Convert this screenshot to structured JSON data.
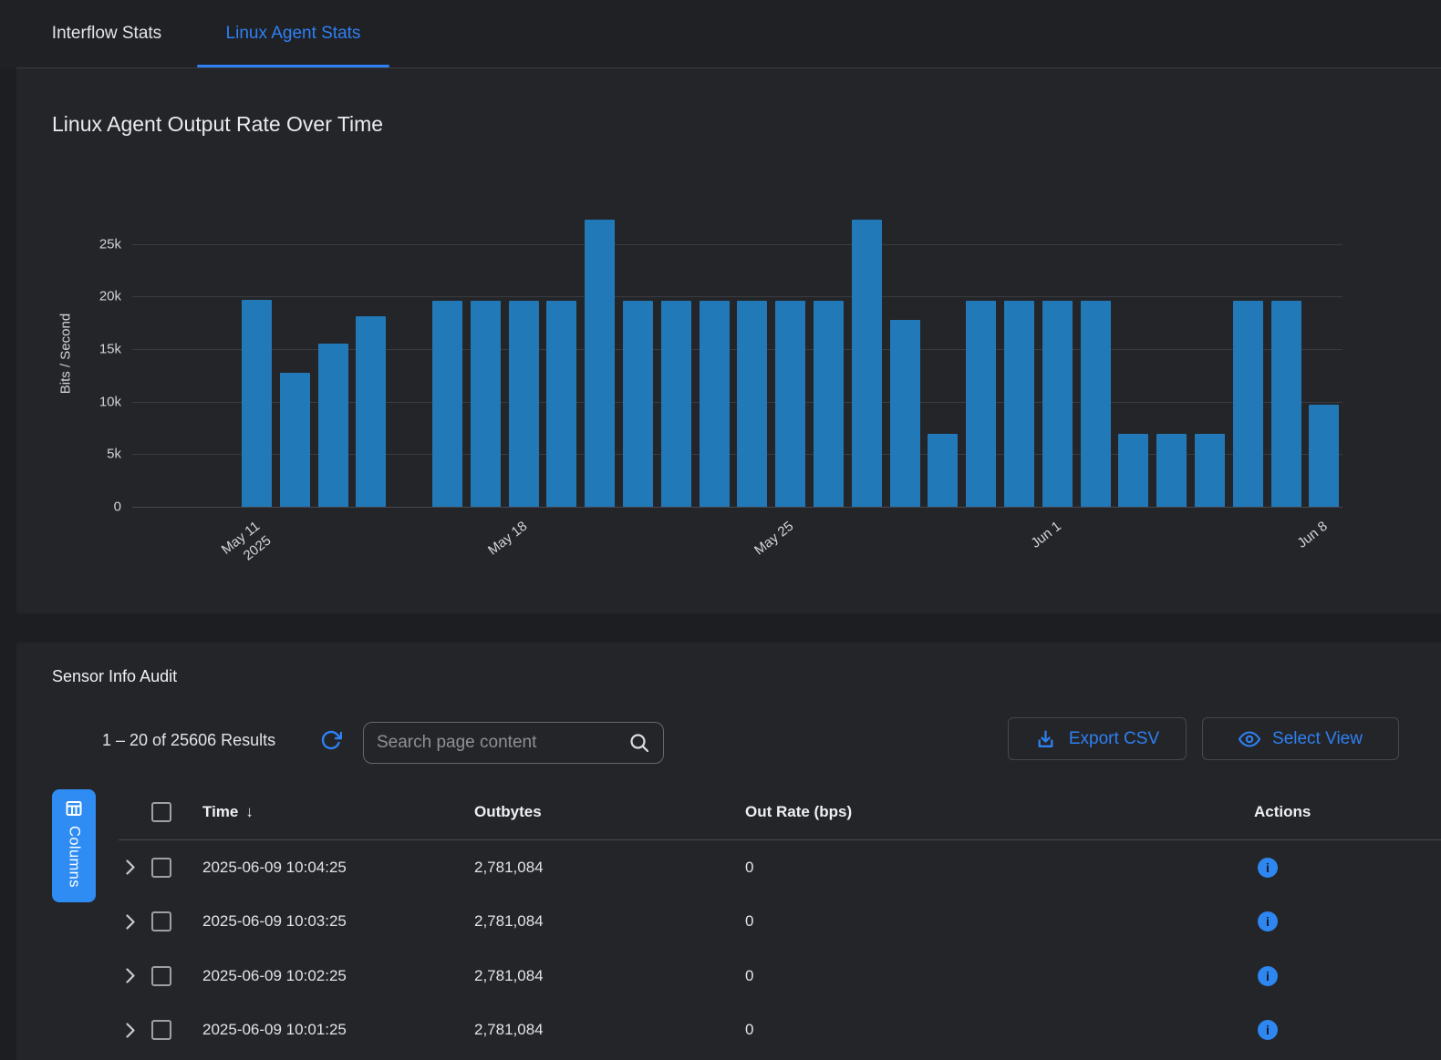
{
  "header": {
    "tabs": [
      {
        "label": "Interflow Stats",
        "active": false
      },
      {
        "label": "Linux Agent Stats",
        "active": true
      }
    ]
  },
  "chart_panel": {
    "title": "Linux Agent Output Rate Over Time"
  },
  "chart_data": {
    "type": "bar",
    "title": "Linux Agent Output Rate Over Time",
    "xlabel": "",
    "ylabel": "Bits / Second",
    "ylim": [
      0,
      28250
    ],
    "grid": true,
    "legend": null,
    "bar_color": "#2279b8",
    "yticks": [
      {
        "value": 0,
        "label": "0"
      },
      {
        "value": 5000,
        "label": "5k"
      },
      {
        "value": 10000,
        "label": "10k"
      },
      {
        "value": 15000,
        "label": "15k"
      },
      {
        "value": 20000,
        "label": "20k"
      },
      {
        "value": 25000,
        "label": "25k"
      }
    ],
    "categories": [
      "May 11",
      "May 12",
      "May 13",
      "May 14",
      "May 15",
      "May 16",
      "May 17",
      "May 18",
      "May 19",
      "May 20",
      "May 21",
      "May 22",
      "May 23",
      "May 24",
      "May 25",
      "May 26",
      "May 27",
      "May 28",
      "May 29",
      "May 30",
      "May 31",
      "Jun 1",
      "Jun 2",
      "Jun 3",
      "Jun 4",
      "Jun 5",
      "Jun 6",
      "Jun 7",
      "Jun 8"
    ],
    "values": [
      19700,
      12700,
      15500,
      18100,
      null,
      19600,
      19600,
      19600,
      19600,
      27300,
      19600,
      19600,
      19600,
      19600,
      19600,
      19600,
      27300,
      17800,
      6900,
      19600,
      19600,
      19600,
      19600,
      6900,
      6900,
      6900,
      19600,
      19600,
      9700
    ],
    "xticks": [
      {
        "index": 0,
        "label": "May 11",
        "sublabel": "2025"
      },
      {
        "index": 7,
        "label": "May 18",
        "sublabel": ""
      },
      {
        "index": 14,
        "label": "May 25",
        "sublabel": ""
      },
      {
        "index": 21,
        "label": "Jun 1",
        "sublabel": ""
      },
      {
        "index": 28,
        "label": "Jun 8",
        "sublabel": ""
      }
    ]
  },
  "audit": {
    "title": "Sensor Info Audit",
    "results_summary": "1 – 20 of 25606 Results",
    "search": {
      "placeholder": "Search page content",
      "value": ""
    },
    "buttons": {
      "export_csv": "Export CSV",
      "select_view": "Select View",
      "columns": "Columns"
    },
    "table": {
      "columns": [
        "Time",
        "Outbytes",
        "Out Rate (bps)",
        "Actions"
      ],
      "sort": {
        "column": "Time",
        "direction": "desc",
        "glyph": "↓"
      },
      "rows": [
        {
          "time": "2025-06-09 10:04:25",
          "outbytes": "2,781,084",
          "out_rate_bps": "0"
        },
        {
          "time": "2025-06-09 10:03:25",
          "outbytes": "2,781,084",
          "out_rate_bps": "0"
        },
        {
          "time": "2025-06-09 10:02:25",
          "outbytes": "2,781,084",
          "out_rate_bps": "0"
        },
        {
          "time": "2025-06-09 10:01:25",
          "outbytes": "2,781,084",
          "out_rate_bps": "0"
        }
      ]
    }
  },
  "icons": {
    "info_glyph": "i"
  },
  "colors": {
    "accent_blue": "#2e80f3",
    "bar_blue": "#2279b8",
    "columns_button_blue": "#2e8cf2",
    "info_icon_blue": "#2e86f0",
    "page_bg": "#1d1e21",
    "card_bg": "#242529"
  }
}
